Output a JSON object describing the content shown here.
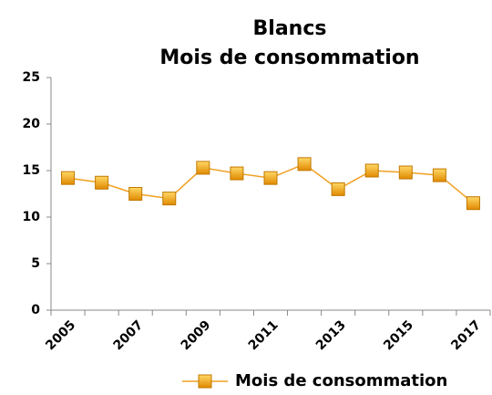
{
  "chart_data": {
    "type": "line",
    "title": "Blancs",
    "subtitle": "Mois de consommation",
    "categories": [
      "2005",
      null,
      "2007",
      null,
      "2009",
      null,
      "2011",
      null,
      "2013",
      null,
      "2015",
      null,
      "2017"
    ],
    "series": [
      {
        "name": "Mois de consommation",
        "color": "#f0a020",
        "values": [
          14.2,
          13.7,
          12.5,
          12.0,
          15.3,
          14.7,
          14.2,
          15.7,
          13.0,
          15.0,
          14.8,
          14.5,
          11.5
        ]
      }
    ],
    "ylim": [
      0,
      25
    ],
    "yticks": [
      0,
      5,
      10,
      15,
      20,
      25
    ],
    "grid": false,
    "legend": "bottom"
  }
}
